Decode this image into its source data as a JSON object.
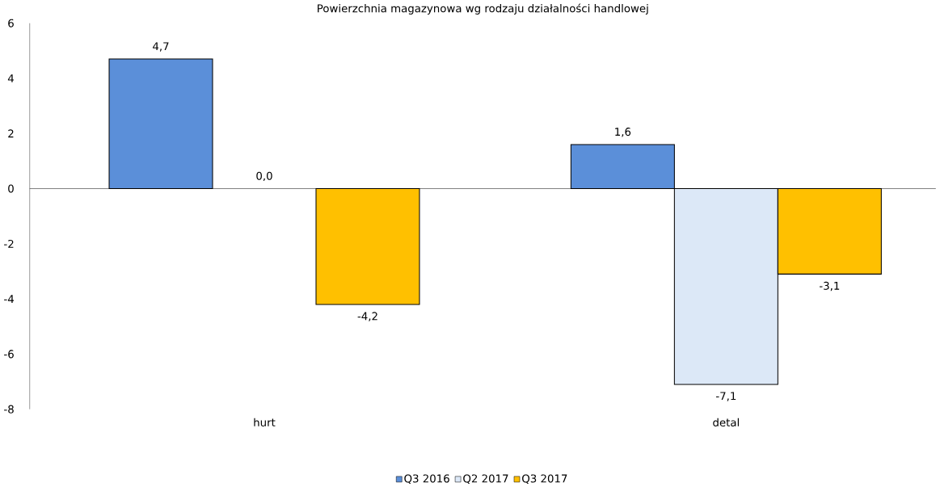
{
  "chart_data": {
    "type": "bar",
    "title": "Powierzchnia magazynowa wg rodzaju działalności handlowej",
    "categories": [
      "hurt",
      "detal"
    ],
    "series": [
      {
        "name": "Q3 2016",
        "color": "#5b8fd9",
        "values": [
          4.7,
          1.6
        ],
        "value_labels": [
          "4,7",
          "1,6"
        ]
      },
      {
        "name": "Q2 2017",
        "color": "#dce8f7",
        "values": [
          0.0,
          -7.1
        ],
        "value_labels": [
          "0,0",
          "-7,1"
        ]
      },
      {
        "name": "Q3 2017",
        "color": "#ffc000",
        "values": [
          -4.2,
          -3.1
        ],
        "value_labels": [
          "-4,2",
          "-3,1"
        ]
      }
    ],
    "ylim": [
      -8,
      6
    ],
    "yticks": [
      -8,
      -6,
      -4,
      -2,
      0,
      2,
      4,
      6
    ],
    "legend": "bottom"
  }
}
